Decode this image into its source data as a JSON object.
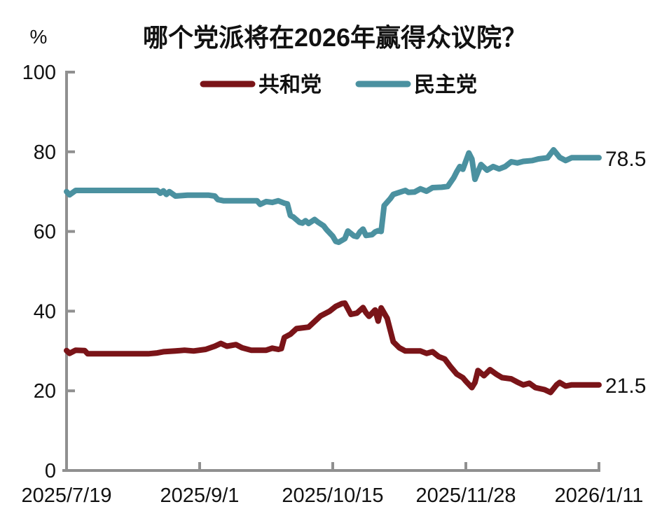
{
  "page": {
    "background_color": "#ffffff",
    "text_color": "#111111",
    "axis_color": "#909090"
  },
  "chart_data": {
    "type": "line",
    "title": "哪个党派将在2026年赢得众议院？",
    "unit_label": "%",
    "grid": false,
    "legend_position": "top-center",
    "ylim": [
      0,
      100
    ],
    "y_ticks": [
      0,
      20,
      40,
      60,
      80,
      100
    ],
    "x_tick_labels": [
      "2025/7/19",
      "2025/9/1",
      "2025/10/15",
      "2025/11/28",
      "2026/1/11"
    ],
    "x_tick_days": [
      0,
      44,
      88,
      132,
      176
    ],
    "x_range_days": [
      0,
      176
    ],
    "series": [
      {
        "name": "共和党",
        "color": "#7a1418",
        "end_label": "21.5",
        "points": [
          [
            0,
            30.1
          ],
          [
            1,
            29.4
          ],
          [
            3,
            30.2
          ],
          [
            6,
            30.1
          ],
          [
            7,
            29.3
          ],
          [
            27,
            29.3
          ],
          [
            30,
            29.5
          ],
          [
            32,
            29.8
          ],
          [
            36,
            30.0
          ],
          [
            39,
            30.2
          ],
          [
            42,
            30.0
          ],
          [
            46,
            30.4
          ],
          [
            49,
            31.2
          ],
          [
            51,
            31.9
          ],
          [
            53,
            31.2
          ],
          [
            56,
            31.6
          ],
          [
            58,
            30.8
          ],
          [
            61,
            30.2
          ],
          [
            66,
            30.2
          ],
          [
            68,
            30.7
          ],
          [
            70,
            30.4
          ],
          [
            71,
            30.6
          ],
          [
            72,
            33.4
          ],
          [
            74,
            34.2
          ],
          [
            76,
            35.6
          ],
          [
            80,
            36.0
          ],
          [
            82,
            37.4
          ],
          [
            84,
            38.8
          ],
          [
            87,
            40.0
          ],
          [
            89,
            41.2
          ],
          [
            91,
            41.9
          ],
          [
            92,
            42.0
          ],
          [
            94,
            39.2
          ],
          [
            96,
            39.5
          ],
          [
            98,
            40.9
          ],
          [
            99,
            39.6
          ],
          [
            100,
            38.7
          ],
          [
            102,
            40.3
          ],
          [
            103,
            37.5
          ],
          [
            104,
            40.8
          ],
          [
            106,
            38.2
          ],
          [
            108,
            32.3
          ],
          [
            110,
            30.8
          ],
          [
            112,
            30.0
          ],
          [
            117,
            30.0
          ],
          [
            119,
            29.4
          ],
          [
            121,
            29.8
          ],
          [
            123,
            28.6
          ],
          [
            125,
            28.0
          ],
          [
            127,
            26.0
          ],
          [
            129,
            24.2
          ],
          [
            131,
            23.3
          ],
          [
            132,
            22.4
          ],
          [
            134,
            20.8
          ],
          [
            135,
            22.1
          ],
          [
            136,
            25.1
          ],
          [
            138,
            23.8
          ],
          [
            140,
            25.3
          ],
          [
            142,
            24.2
          ],
          [
            144,
            23.3
          ],
          [
            147,
            23.0
          ],
          [
            149,
            22.2
          ],
          [
            151,
            21.5
          ],
          [
            153,
            21.9
          ],
          [
            155,
            20.8
          ],
          [
            158,
            20.3
          ],
          [
            160,
            19.6
          ],
          [
            162,
            21.5
          ],
          [
            163,
            22.1
          ],
          [
            165,
            21.2
          ],
          [
            167,
            21.5
          ],
          [
            176,
            21.5
          ]
        ]
      },
      {
        "name": "民主党",
        "color": "#4b91a0",
        "end_label": "78.5",
        "points": [
          [
            0,
            70.0
          ],
          [
            1,
            69.2
          ],
          [
            3,
            70.3
          ],
          [
            8,
            70.3
          ],
          [
            30,
            70.3
          ],
          [
            31,
            69.6
          ],
          [
            32,
            70.2
          ],
          [
            33,
            69.3
          ],
          [
            34,
            70.0
          ],
          [
            36,
            68.9
          ],
          [
            40,
            69.1
          ],
          [
            47,
            69.1
          ],
          [
            49,
            68.9
          ],
          [
            50,
            68.0
          ],
          [
            52,
            67.7
          ],
          [
            61,
            67.7
          ],
          [
            63,
            67.7
          ],
          [
            64,
            66.8
          ],
          [
            66,
            67.5
          ],
          [
            68,
            67.3
          ],
          [
            70,
            67.7
          ],
          [
            72,
            67.1
          ],
          [
            73,
            66.9
          ],
          [
            74,
            64.0
          ],
          [
            75,
            63.6
          ],
          [
            77,
            62.3
          ],
          [
            78,
            62.1
          ],
          [
            79,
            62.7
          ],
          [
            80,
            62.0
          ],
          [
            82,
            63.0
          ],
          [
            83,
            62.4
          ],
          [
            85,
            61.4
          ],
          [
            86,
            60.4
          ],
          [
            88,
            58.8
          ],
          [
            89,
            57.5
          ],
          [
            90,
            57.3
          ],
          [
            92,
            58.2
          ],
          [
            93,
            60.1
          ],
          [
            95,
            58.9
          ],
          [
            96,
            58.7
          ],
          [
            97,
            59.9
          ],
          [
            98,
            60.6
          ],
          [
            99,
            59.0
          ],
          [
            101,
            59.2
          ],
          [
            102,
            59.9
          ],
          [
            103,
            60.2
          ],
          [
            104,
            60.0
          ],
          [
            105,
            66.5
          ],
          [
            107,
            68.2
          ],
          [
            108,
            69.3
          ],
          [
            110,
            69.8
          ],
          [
            112,
            70.3
          ],
          [
            113,
            69.8
          ],
          [
            115,
            69.9
          ],
          [
            117,
            70.7
          ],
          [
            119,
            70.1
          ],
          [
            121,
            71.0
          ],
          [
            124,
            71.1
          ],
          [
            126,
            71.3
          ],
          [
            128,
            73.5
          ],
          [
            129,
            75.0
          ],
          [
            130,
            76.3
          ],
          [
            131,
            75.6
          ],
          [
            133,
            79.7
          ],
          [
            134,
            78.2
          ],
          [
            135,
            73.1
          ],
          [
            137,
            76.8
          ],
          [
            139,
            75.4
          ],
          [
            141,
            76.3
          ],
          [
            143,
            75.7
          ],
          [
            145,
            76.3
          ],
          [
            147,
            77.5
          ],
          [
            149,
            77.2
          ],
          [
            151,
            77.6
          ],
          [
            154,
            77.8
          ],
          [
            156,
            78.2
          ],
          [
            159,
            78.5
          ],
          [
            161,
            80.5
          ],
          [
            163,
            78.6
          ],
          [
            165,
            77.8
          ],
          [
            167,
            78.5
          ],
          [
            176,
            78.5
          ]
        ]
      }
    ]
  }
}
